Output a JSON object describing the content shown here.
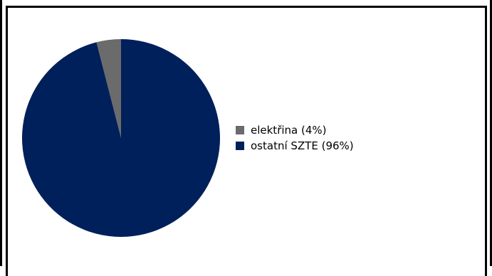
{
  "chart_data": {
    "type": "pie",
    "title": "",
    "slices": [
      {
        "label": "elektřina (4%)",
        "value": 4,
        "color": "#6b6b6b"
      },
      {
        "label": "ostatní SZTE (96%)",
        "value": 96,
        "color": "#00205b"
      }
    ],
    "legend_position": "right"
  }
}
